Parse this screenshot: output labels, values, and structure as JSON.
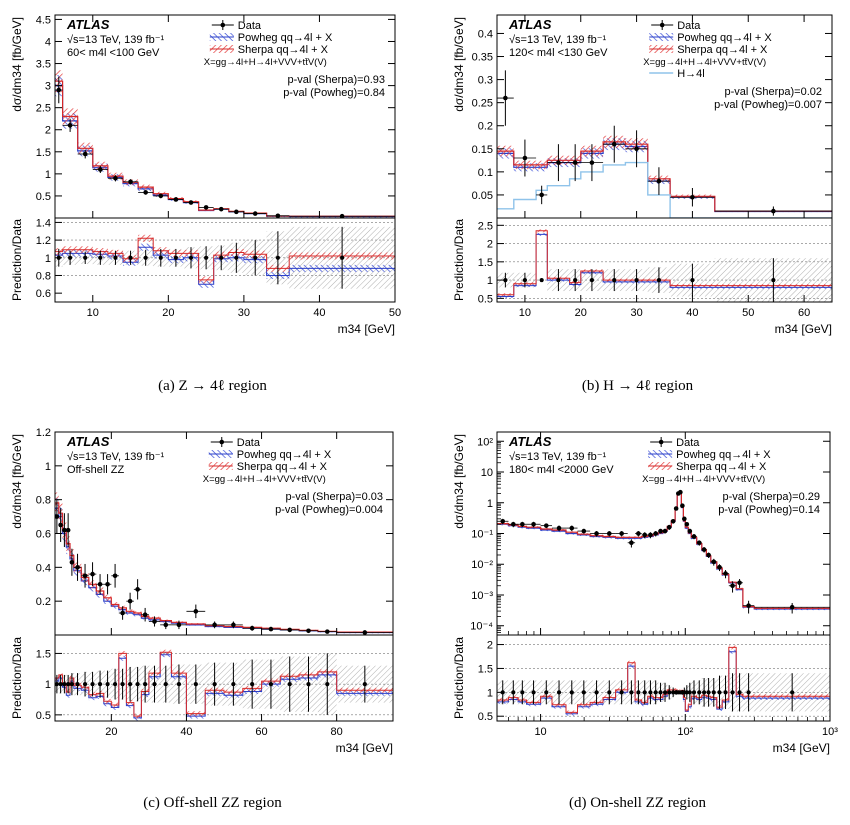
{
  "figure": {
    "captions": [
      "(a)  Z → 4ℓ region",
      "(b)  H → 4ℓ region",
      "(c)  Off-shell ZZ region",
      "(d)  On-shell ZZ region"
    ]
  },
  "chart_data": [
    {
      "type": "line",
      "panel": "a",
      "experiment": "ATLAS",
      "info_lines": [
        "√s=13 TeV, 139 fb⁻¹",
        "60< m4l <100 GeV"
      ],
      "ylabel": "dσ/dm34 [fb/GeV]",
      "ratio_ylabel": "Prediction/Data",
      "xlabel": "m34 [GeV]",
      "xscale": "linear",
      "yscale": "linear",
      "xlim": [
        5,
        50
      ],
      "ylim": [
        0,
        4.6
      ],
      "ratio_ylim": [
        0.5,
        1.45
      ],
      "xticks": [
        10,
        20,
        30,
        40,
        50
      ],
      "yticks": [
        0.5,
        1,
        1.5,
        2,
        2.5,
        3,
        3.5,
        4,
        4.5
      ],
      "ratio_yticks": [
        0.6,
        0.8,
        1,
        1.2,
        1.4
      ],
      "ratio_gridlines": [
        0.8,
        1,
        1.2,
        1.4
      ],
      "legend": [
        "Data",
        "Powheg qq→4l + X",
        "Sherpa qq→4l + X",
        "X=gg→4l+H→4l+VVV+tt̄V(V)"
      ],
      "pvalues": [
        "p-val (Sherpa)=0.93",
        "p-val (Powheg)=0.84"
      ],
      "bin_edges": [
        5,
        6,
        8,
        10,
        12,
        14,
        16,
        18,
        20,
        22,
        24,
        26,
        28,
        30,
        33,
        36,
        50
      ],
      "data": [
        2.9,
        2.1,
        1.45,
        1.1,
        0.9,
        0.82,
        0.58,
        0.5,
        0.42,
        0.35,
        0.24,
        0.2,
        0.14,
        0.1,
        0.05,
        0.04
      ],
      "data_err": [
        0.3,
        0.15,
        0.1,
        0.08,
        0.07,
        0.06,
        0.05,
        0.05,
        0.04,
        0.04,
        0.03,
        0.03,
        0.03,
        0.02,
        0.02,
        0.01
      ],
      "powheg": [
        3.0,
        2.2,
        1.52,
        1.14,
        0.92,
        0.78,
        0.66,
        0.52,
        0.42,
        0.35,
        0.17,
        0.2,
        0.14,
        0.1,
        0.04,
        0.035
      ],
      "sherpa": [
        3.1,
        2.3,
        1.58,
        1.18,
        0.95,
        0.81,
        0.7,
        0.55,
        0.44,
        0.37,
        0.18,
        0.21,
        0.15,
        0.11,
        0.045,
        0.04
      ],
      "ratio_powheg": [
        1.03,
        1.05,
        1.05,
        1.04,
        1.02,
        0.95,
        1.12,
        1.03,
        0.98,
        1.0,
        0.7,
        0.99,
        1.0,
        0.98,
        0.8,
        0.88
      ],
      "ratio_sherpa": [
        1.07,
        1.09,
        1.09,
        1.07,
        1.05,
        0.99,
        1.22,
        1.08,
        1.05,
        1.05,
        0.75,
        1.03,
        1.06,
        1.04,
        0.88,
        1.02
      ],
      "ratio_data_err": [
        0.1,
        0.08,
        0.07,
        0.08,
        0.08,
        0.08,
        0.09,
        0.1,
        0.1,
        0.12,
        0.13,
        0.14,
        0.17,
        0.2,
        0.3,
        0.35
      ]
    },
    {
      "type": "line",
      "panel": "b",
      "experiment": "ATLAS",
      "info_lines": [
        "√s=13 TeV, 139 fb⁻¹",
        "120< m4l <130 GeV"
      ],
      "ylabel": "dσ/dm34 [fb/GeV]",
      "ratio_ylabel": "Prediction/Data",
      "xlabel": "m34 [GeV]",
      "xscale": "linear",
      "yscale": "linear",
      "xlim": [
        5,
        65
      ],
      "ylim": [
        0,
        0.44
      ],
      "ratio_ylim": [
        0.4,
        2.7
      ],
      "xticks": [
        10,
        20,
        30,
        40,
        50,
        60
      ],
      "yticks": [
        0.05,
        0.1,
        0.15,
        0.2,
        0.25,
        0.3,
        0.35,
        0.4
      ],
      "ratio_yticks": [
        0.5,
        1,
        1.5,
        2,
        2.5
      ],
      "ratio_gridlines": [
        0.5,
        1,
        1.5,
        2,
        2.5
      ],
      "legend": [
        "Data",
        "Powheg qq→4l + X",
        "Sherpa qq→4l + X",
        "X=gg→4l+H→4l+VVV+tt̄V(V)",
        "H→4l"
      ],
      "pvalues": [
        "p-val (Sherpa)=0.02",
        "p-val (Powheg)=0.007"
      ],
      "bin_edges": [
        5,
        8,
        12,
        14,
        18,
        20,
        24,
        28,
        32,
        36,
        44,
        65
      ],
      "data": [
        0.26,
        0.13,
        0.05,
        0.12,
        0.12,
        0.12,
        0.16,
        0.15,
        0.08,
        0.045,
        0.015
      ],
      "data_err": [
        0.06,
        0.04,
        0.02,
        0.04,
        0.04,
        0.04,
        0.04,
        0.04,
        0.03,
        0.02,
        0.01
      ],
      "powheg": [
        0.14,
        0.11,
        0.11,
        0.12,
        0.12,
        0.14,
        0.16,
        0.155,
        0.08,
        0.045,
        0.014
      ],
      "sherpa": [
        0.145,
        0.115,
        0.115,
        0.125,
        0.125,
        0.145,
        0.165,
        0.16,
        0.085,
        0.047,
        0.015
      ],
      "higgs": [
        0.02,
        0.04,
        0.06,
        0.07,
        0.085,
        0.1,
        0.115,
        0.12,
        0.05,
        0.0,
        0.0
      ],
      "ratio_powheg": [
        0.55,
        0.85,
        2.25,
        1.0,
        0.88,
        1.2,
        0.95,
        0.95,
        0.95,
        0.8,
        0.8
      ],
      "ratio_sherpa": [
        0.6,
        0.9,
        2.35,
        1.05,
        0.93,
        1.25,
        1.0,
        1.0,
        1.0,
        0.85,
        0.85
      ],
      "ratio_data_err": [
        0.2,
        0.2,
        0.0,
        0.3,
        0.3,
        0.3,
        0.3,
        0.3,
        0.35,
        0.45,
        0.6
      ]
    },
    {
      "type": "line",
      "panel": "c",
      "experiment": "ATLAS",
      "info_lines": [
        "√s=13 TeV, 139 fb⁻¹",
        "Off-shell ZZ"
      ],
      "ylabel": "dσ/dm34 [fb/GeV]",
      "ratio_ylabel": "Prediction/Data",
      "xlabel": "m34 [GeV]",
      "xscale": "linear",
      "yscale": "linear",
      "xlim": [
        5,
        95
      ],
      "ylim": [
        0,
        1.2
      ],
      "ratio_ylim": [
        0.4,
        1.8
      ],
      "xticks": [
        20,
        40,
        60,
        80
      ],
      "yticks": [
        0.2,
        0.4,
        0.6,
        0.8,
        1,
        1.2
      ],
      "ratio_yticks": [
        0.5,
        1,
        1.5
      ],
      "ratio_gridlines": [
        0.5,
        1,
        1.5
      ],
      "legend": [
        "Data",
        "Powheg qq→4l + X",
        "Sherpa qq→4l + X",
        "X=gg→4l+H→4l+VVV+tt̄V(V)"
      ],
      "pvalues": [
        "p-val (Sherpa)=0.03",
        "p-val (Powheg)=0.004"
      ],
      "bin_edges": [
        5,
        6,
        7,
        8,
        9,
        10,
        12,
        14,
        16,
        18,
        20,
        22,
        24,
        26,
        28,
        30,
        33,
        36,
        40,
        45,
        50,
        55,
        60,
        65,
        70,
        75,
        80,
        95
      ],
      "data": [
        0.7,
        0.65,
        0.62,
        0.62,
        0.43,
        0.4,
        0.35,
        0.36,
        0.3,
        0.3,
        0.35,
        0.13,
        0.2,
        0.27,
        0.12,
        0.08,
        0.06,
        0.06,
        0.14,
        0.06,
        0.06,
        0.04,
        0.035,
        0.03,
        0.025,
        0.02,
        0.015
      ],
      "data_err": [
        0.1,
        0.1,
        0.1,
        0.1,
        0.08,
        0.08,
        0.07,
        0.07,
        0.06,
        0.06,
        0.07,
        0.04,
        0.05,
        0.06,
        0.04,
        0.03,
        0.025,
        0.025,
        0.04,
        0.02,
        0.02,
        0.015,
        0.012,
        0.01,
        0.01,
        0.008,
        0.006
      ],
      "powheg": [
        0.75,
        0.7,
        0.6,
        0.52,
        0.45,
        0.38,
        0.32,
        0.28,
        0.24,
        0.2,
        0.17,
        0.15,
        0.13,
        0.12,
        0.1,
        0.09,
        0.08,
        0.07,
        0.06,
        0.05,
        0.045,
        0.04,
        0.035,
        0.03,
        0.025,
        0.02,
        0.015
      ],
      "sherpa": [
        0.78,
        0.72,
        0.62,
        0.54,
        0.47,
        0.4,
        0.34,
        0.3,
        0.26,
        0.22,
        0.18,
        0.16,
        0.14,
        0.13,
        0.11,
        0.1,
        0.085,
        0.075,
        0.065,
        0.055,
        0.05,
        0.045,
        0.04,
        0.033,
        0.028,
        0.022,
        0.017
      ],
      "ratio_powheg": [
        1.05,
        1.1,
        0.95,
        0.82,
        1.05,
        0.93,
        0.9,
        0.78,
        0.8,
        0.68,
        0.62,
        1.42,
        0.65,
        0.45,
        0.83,
        1.12,
        1.48,
        1.12,
        0.48,
        0.85,
        0.82,
        0.88,
        1.0,
        1.08,
        1.1,
        1.15,
        0.85
      ],
      "ratio_sherpa": [
        1.1,
        1.15,
        1.0,
        0.87,
        1.1,
        0.98,
        0.95,
        0.83,
        0.85,
        0.72,
        0.66,
        1.5,
        0.7,
        0.48,
        0.88,
        1.18,
        1.52,
        1.18,
        0.52,
        0.9,
        0.87,
        0.93,
        1.05,
        1.13,
        1.15,
        1.2,
        0.9
      ],
      "ratio_data_err": [
        0.15,
        0.15,
        0.15,
        0.15,
        0.18,
        0.18,
        0.2,
        0.2,
        0.22,
        0.22,
        0.25,
        0.25,
        0.28,
        0.28,
        0.3,
        0.3,
        0.3,
        0.32,
        0.32,
        0.35,
        0.35,
        0.4,
        0.4,
        0.45,
        0.45,
        0.5,
        0.3
      ]
    },
    {
      "type": "line",
      "panel": "d",
      "experiment": "ATLAS",
      "info_lines": [
        "√s=13 TeV, 139 fb⁻¹",
        "180< m4l <2000 GeV"
      ],
      "ylabel": "dσ/dm34 [fb/GeV]",
      "ratio_ylabel": "Prediction/Data",
      "xlabel": "m34 [GeV]",
      "xscale": "log",
      "yscale": "log",
      "xlim": [
        5,
        1000
      ],
      "ylim": [
        5e-05,
        200
      ],
      "ratio_ylim": [
        0.4,
        2.2
      ],
      "xticks": [
        10,
        100,
        1000
      ],
      "xtick_labels": [
        "10",
        "10²",
        "10³"
      ],
      "yticks": [
        0.0001,
        0.001,
        0.01,
        0.1,
        1,
        10,
        100
      ],
      "ytick_labels": [
        "10⁻⁴",
        "10⁻³",
        "10⁻²",
        "10⁻¹",
        "1",
        "10",
        "10²"
      ],
      "ratio_yticks": [
        0.5,
        1,
        1.5,
        2
      ],
      "ratio_gridlines": [
        0.5,
        1,
        1.5,
        2
      ],
      "legend": [
        "Data",
        "Powheg qq→4l + X",
        "Sherpa qq→4l + X",
        "X=gg→4l+H→4l+VVV+tt̄V(V)"
      ],
      "pvalues": [
        "p-val (Sherpa)=0.29",
        "p-val (Powheg)=0.14"
      ],
      "bin_edges": [
        5,
        6,
        7,
        8,
        10,
        12,
        15,
        18,
        22,
        27,
        33,
        40,
        45,
        50,
        55,
        60,
        65,
        70,
        75,
        80,
        85,
        88,
        91,
        94,
        97,
        100,
        105,
        110,
        120,
        130,
        140,
        150,
        165,
        180,
        200,
        225,
        250,
        300,
        1000
      ],
      "data": [
        0.25,
        0.2,
        0.2,
        0.2,
        0.18,
        0.15,
        0.15,
        0.12,
        0.1,
        0.1,
        0.1,
        0.05,
        0.1,
        0.09,
        0.09,
        0.1,
        0.12,
        0.12,
        0.16,
        0.25,
        0.65,
        2.0,
        2.2,
        0.8,
        0.3,
        0.2,
        0.12,
        0.08,
        0.05,
        0.03,
        0.02,
        0.012,
        0.008,
        0.005,
        0.002,
        0.0025,
        0.00045,
        0.0004
      ],
      "data_err": [
        0.05,
        0.04,
        0.04,
        0.04,
        0.03,
        0.03,
        0.03,
        0.02,
        0.02,
        0.02,
        0.02,
        0.015,
        0.02,
        0.02,
        0.02,
        0.02,
        0.02,
        0.02,
        0.03,
        0.04,
        0.08,
        0.15,
        0.15,
        0.08,
        0.04,
        0.03,
        0.02,
        0.015,
        0.01,
        0.006,
        0.004,
        0.003,
        0.002,
        0.0015,
        0.0008,
        0.0008,
        0.0002,
        0.00015
      ],
      "powheg": [
        0.2,
        0.18,
        0.16,
        0.15,
        0.13,
        0.12,
        0.1,
        0.09,
        0.08,
        0.075,
        0.07,
        0.07,
        0.07,
        0.075,
        0.08,
        0.09,
        0.1,
        0.12,
        0.16,
        0.25,
        0.6,
        2.0,
        2.3,
        0.7,
        0.25,
        0.15,
        0.1,
        0.07,
        0.045,
        0.028,
        0.018,
        0.011,
        0.007,
        0.0045,
        0.0025,
        0.0015,
        0.0004,
        0.00035
      ],
      "sherpa": [
        0.21,
        0.19,
        0.17,
        0.16,
        0.14,
        0.13,
        0.11,
        0.095,
        0.085,
        0.08,
        0.075,
        0.075,
        0.075,
        0.08,
        0.085,
        0.095,
        0.105,
        0.125,
        0.17,
        0.26,
        0.62,
        2.05,
        2.35,
        0.72,
        0.26,
        0.16,
        0.105,
        0.075,
        0.047,
        0.03,
        0.019,
        0.012,
        0.0075,
        0.0047,
        0.0026,
        0.0016,
        0.00042,
        0.00037
      ],
      "ratio_powheg": [
        0.8,
        0.85,
        0.8,
        0.75,
        0.88,
        0.7,
        0.55,
        0.7,
        0.75,
        0.85,
        1.0,
        1.55,
        0.8,
        0.75,
        0.88,
        0.85,
        0.85,
        0.92,
        1.0,
        1.0,
        1.0,
        1.0,
        1.0,
        1.0,
        0.85,
        0.6,
        0.7,
        0.88,
        0.85,
        0.9,
        0.88,
        0.85,
        0.65,
        0.8,
        1.85,
        0.92,
        0.88,
        0.88
      ],
      "ratio_sherpa": [
        0.84,
        0.89,
        0.84,
        0.79,
        0.92,
        0.74,
        0.58,
        0.74,
        0.79,
        0.89,
        1.05,
        1.62,
        0.84,
        0.79,
        0.92,
        0.89,
        0.89,
        0.96,
        1.05,
        1.05,
        1.05,
        1.02,
        1.02,
        1.04,
        0.89,
        0.63,
        0.74,
        0.92,
        0.89,
        0.94,
        0.92,
        0.89,
        0.69,
        0.84,
        1.94,
        0.96,
        0.92,
        0.92
      ],
      "ratio_data_err": [
        0.25,
        0.25,
        0.25,
        0.25,
        0.25,
        0.25,
        0.25,
        0.25,
        0.25,
        0.25,
        0.25,
        0.25,
        0.25,
        0.25,
        0.25,
        0.25,
        0.2,
        0.2,
        0.15,
        0.1,
        0.05,
        0.03,
        0.03,
        0.05,
        0.1,
        0.15,
        0.2,
        0.25,
        0.25,
        0.3,
        0.3,
        0.3,
        0.35,
        0.35,
        0.4,
        0.4,
        0.4,
        0.4
      ]
    }
  ]
}
